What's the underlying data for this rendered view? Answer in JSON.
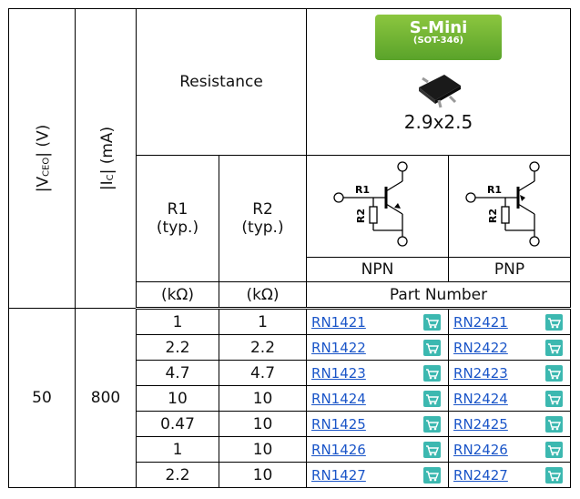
{
  "header": {
    "vceo": {
      "prefix": "|V",
      "sub": "CEO",
      "suffix": "| (V)"
    },
    "ic": {
      "prefix": "|I",
      "sub": "C",
      "suffix": "| (mA)"
    },
    "resistance": "Resistance",
    "package": {
      "name": "S-Mini",
      "code": "(SOT-346)",
      "size": "2.9x2.5"
    },
    "r1": {
      "name": "R1",
      "note": "(typ.)",
      "unit": "(kΩ)"
    },
    "r2": {
      "name": "R2",
      "note": "(typ.)",
      "unit": "(kΩ)"
    },
    "circuit": {
      "r1": "R1",
      "r2": "R2"
    },
    "npn": "NPN",
    "pnp": "PNP",
    "part_number": "Part Number"
  },
  "table": {
    "vceo": 50,
    "ic": 800,
    "rows": [
      [
        1,
        1,
        "RN1421",
        "RN2421"
      ],
      [
        2.2,
        2.2,
        "RN1422",
        "RN2422"
      ],
      [
        4.7,
        4.7,
        "RN1423",
        "RN2423"
      ],
      [
        10,
        10,
        "RN1424",
        "RN2424"
      ],
      [
        0.47,
        10,
        "RN1425",
        "RN2425"
      ],
      [
        1,
        10,
        "RN1426",
        "RN2426"
      ],
      [
        2.2,
        10,
        "RN1427",
        "RN2427"
      ]
    ]
  }
}
